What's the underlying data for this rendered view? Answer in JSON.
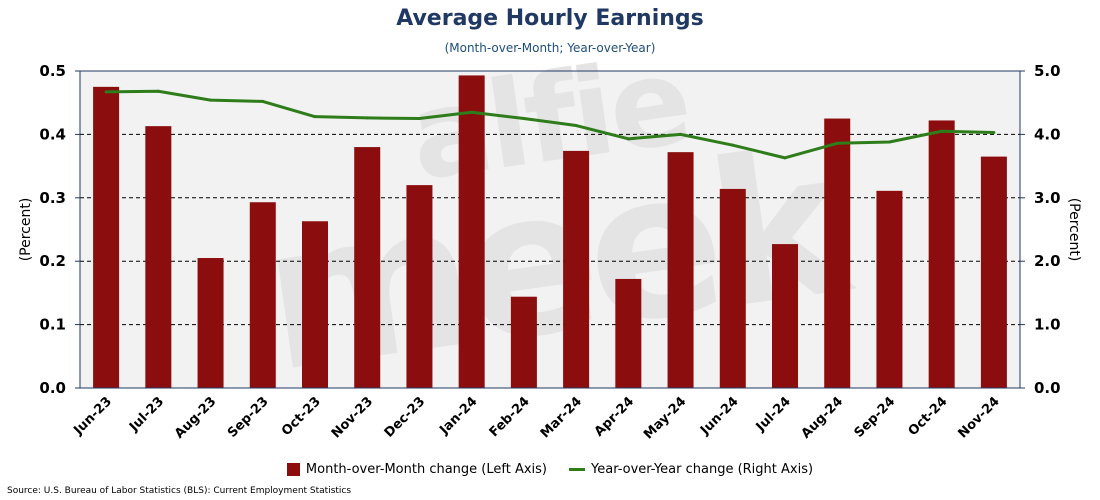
{
  "chart_data": {
    "type": "bar",
    "title": "Average Hourly Earnings",
    "subtitle": "(Month-over-Month; Year-over-Year)",
    "categories": [
      "Jun-23",
      "Jul-23",
      "Aug-23",
      "Sep-23",
      "Oct-23",
      "Nov-23",
      "Dec-23",
      "Jan-24",
      "Feb-24",
      "Mar-24",
      "Apr-24",
      "May-24",
      "Jun-24",
      "Jul-24",
      "Aug-24",
      "Sep-24",
      "Oct-24",
      "Nov-24"
    ],
    "series": [
      {
        "name": "Month-over-Month change (Left Axis)",
        "type": "bar",
        "axis": "left",
        "color": "#8b0d0d",
        "values": [
          0.475,
          0.413,
          0.205,
          0.293,
          0.263,
          0.38,
          0.32,
          0.493,
          0.144,
          0.374,
          0.172,
          0.372,
          0.314,
          0.227,
          0.425,
          0.311,
          0.422,
          0.365
        ]
      },
      {
        "name": "Year-over-Year change (Right Axis)",
        "type": "line",
        "axis": "right",
        "color": "#2e7d1a",
        "values": [
          4.67,
          4.68,
          4.54,
          4.52,
          4.28,
          4.26,
          4.25,
          4.35,
          4.25,
          4.14,
          3.93,
          4.0,
          3.83,
          3.63,
          3.86,
          3.88,
          4.05,
          4.03
        ]
      }
    ],
    "ylabel": "(Percent)",
    "y2label": "(Percent)",
    "ylim": [
      0,
      0.5
    ],
    "y2lim": [
      0,
      5
    ],
    "yticks": [
      "0.0",
      "0.1",
      "0.2",
      "0.3",
      "0.4",
      "0.5"
    ],
    "y2ticks": [
      "0.0",
      "1.0",
      "2.0",
      "3.0",
      "4.0",
      "5.0"
    ],
    "grid": "horizontal dashed",
    "legend": "bottom-center",
    "plot_background": "#f2f2f2",
    "source": "Source: U.S. Bureau of Labor Statistics (BLS): Current Employment Statistics",
    "watermark": "alfie meek"
  }
}
